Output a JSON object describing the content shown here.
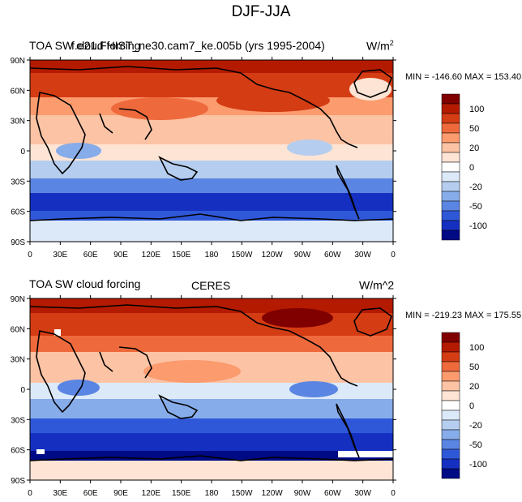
{
  "title": "DJF-JJA",
  "panels": [
    {
      "left_label": "TOA SW cloud forcing",
      "center_label": "f.e21.FHIST_ne30.cam7_ke.005b (yrs 1995-2004)",
      "right_label": "W/m",
      "right_label_sup": "2",
      "stats": "MIN = -146.60 MAX = 153.40"
    },
    {
      "left_label": "TOA SW cloud forcing",
      "center_label": "CERES",
      "right_label": "W/m^2",
      "right_label_sup": "",
      "stats": "MIN = -219.23 MAX = 175.55"
    }
  ],
  "lat_ticks": [
    "90N",
    "60N",
    "30N",
    "0",
    "30S",
    "60S",
    "90S"
  ],
  "lon_ticks": [
    "0",
    "30E",
    "60E",
    "90E",
    "120E",
    "150E",
    "180",
    "150W",
    "120W",
    "90W",
    "60W",
    "30W",
    "0"
  ],
  "colorbar": {
    "labels": [
      "100",
      "50",
      "20",
      "0",
      "-20",
      "-50",
      "-100"
    ],
    "colors": [
      "#800000",
      "#b41a00",
      "#d43c14",
      "#ee6a3c",
      "#fb9b6e",
      "#fcc3a4",
      "#fde4d4",
      "#ffffff",
      "#dce9f8",
      "#b5ceef",
      "#87acea",
      "#5b85e2",
      "#2f58d9",
      "#1530c0",
      "#000a85"
    ]
  },
  "map_colors": {
    "ocean_base": "#fde4d4",
    "land_outline": "#000000"
  }
}
